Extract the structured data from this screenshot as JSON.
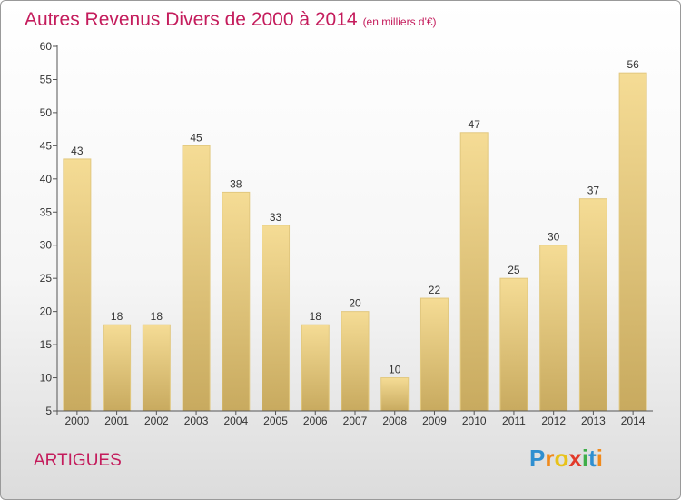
{
  "chart_data": {
    "type": "bar",
    "title": "Autres Revenus Divers de 2000 à 2014",
    "subtitle": "(en milliers d'€)",
    "categories": [
      "2000",
      "2001",
      "2002",
      "2003",
      "2004",
      "2005",
      "2006",
      "2007",
      "2008",
      "2009",
      "2010",
      "2011",
      "2012",
      "2013",
      "2014"
    ],
    "values": [
      43,
      18,
      18,
      45,
      38,
      33,
      18,
      20,
      10,
      22,
      47,
      25,
      30,
      37,
      56
    ],
    "ylim": [
      5,
      60
    ],
    "yticks": [
      "5",
      "10",
      "15",
      "20",
      "25",
      "30",
      "35",
      "40",
      "45",
      "50",
      "55",
      "60"
    ],
    "grid": false,
    "bar_color_top": "#f5dc95",
    "bar_color_bottom": "#c8aa5f"
  },
  "footer": {
    "city": "ARTIGUES",
    "logo_letters": [
      "P",
      "r",
      "o",
      "x",
      "i",
      "t",
      "i"
    ],
    "logo_colors": [
      "#2f8fd0",
      "#f08a1c",
      "#e8c21a",
      "#e23a2a",
      "#3fae49",
      "#2f8fd0",
      "#f08a1c"
    ]
  },
  "colors": {
    "accent": "#c41c5c",
    "axis": "#555555"
  }
}
